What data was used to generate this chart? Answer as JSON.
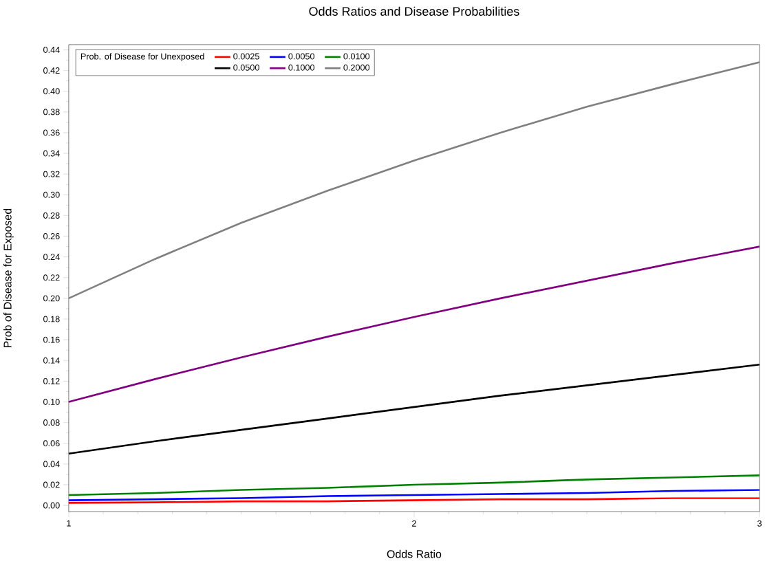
{
  "chart_data": {
    "type": "line",
    "title": "Odds Ratios and Disease Probabilities",
    "xlabel": "Odds Ratio",
    "ylabel": "Prob of Disease for Exposed",
    "legend_title": "Prob. of Disease for Unexposed",
    "legend": "top left",
    "x": [
      1,
      1.25,
      1.5,
      1.75,
      2,
      2.25,
      2.5,
      2.75,
      3
    ],
    "series": [
      {
        "name": "0.0025",
        "color": "#ff0000",
        "values": [
          0.0025,
          0.003,
          0.004,
          0.004,
          0.005,
          0.006,
          0.006,
          0.007,
          0.007
        ]
      },
      {
        "name": "0.0050",
        "color": "#0000ff",
        "values": [
          0.005,
          0.006,
          0.007,
          0.009,
          0.01,
          0.011,
          0.012,
          0.014,
          0.015
        ]
      },
      {
        "name": "0.0100",
        "color": "#008000",
        "values": [
          0.01,
          0.012,
          0.015,
          0.017,
          0.02,
          0.022,
          0.025,
          0.027,
          0.029
        ]
      },
      {
        "name": "0.0500",
        "color": "#000000",
        "values": [
          0.05,
          0.062,
          0.073,
          0.084,
          0.095,
          0.106,
          0.116,
          0.126,
          0.136
        ]
      },
      {
        "name": "0.1000",
        "color": "#800080",
        "values": [
          0.1,
          0.122,
          0.143,
          0.163,
          0.182,
          0.2,
          0.217,
          0.234,
          0.25
        ]
      },
      {
        "name": "0.2000",
        "color": "#808080",
        "values": [
          0.2,
          0.238,
          0.273,
          0.304,
          0.333,
          0.36,
          0.385,
          0.407,
          0.428
        ]
      }
    ],
    "xlim": [
      1,
      3
    ],
    "xticks": [
      1,
      2,
      3
    ],
    "ylim": [
      -0.006,
      0.445
    ],
    "yticks": [
      {
        "value": 0,
        "label": "0.00"
      },
      {
        "value": 0.02,
        "label": "0.02"
      },
      {
        "value": 0.04,
        "label": "0.04"
      },
      {
        "value": 0.06,
        "label": "0.06"
      },
      {
        "value": 0.08,
        "label": "0.08"
      },
      {
        "value": 0.1,
        "label": "0.10"
      },
      {
        "value": 0.12,
        "label": "0.12"
      },
      {
        "value": 0.14,
        "label": "0.14"
      },
      {
        "value": 0.16,
        "label": "0.16"
      },
      {
        "value": 0.18,
        "label": "0.18"
      },
      {
        "value": 0.2,
        "label": "0.20"
      },
      {
        "value": 0.22,
        "label": "0.22"
      },
      {
        "value": 0.24,
        "label": "0.24"
      },
      {
        "value": 0.26,
        "label": "0.26"
      },
      {
        "value": 0.28,
        "label": "0.28"
      },
      {
        "value": 0.3,
        "label": "0.30"
      },
      {
        "value": 0.32,
        "label": "0.32"
      },
      {
        "value": 0.34,
        "label": "0.34"
      },
      {
        "value": 0.36,
        "label": "0.36"
      },
      {
        "value": 0.38,
        "label": "0.38"
      },
      {
        "value": 0.4,
        "label": "0.40"
      },
      {
        "value": 0.42,
        "label": "0.42"
      },
      {
        "value": 0.44,
        "label": "0.44"
      }
    ]
  }
}
